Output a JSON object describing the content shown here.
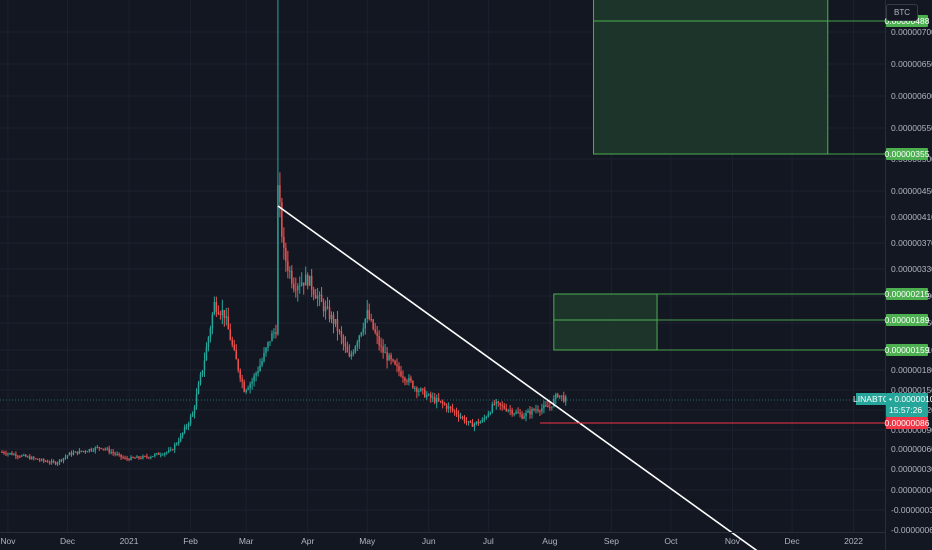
{
  "currency_label": "BTC",
  "colors": {
    "background": "#131722",
    "up": "#26a69a",
    "down": "#ef5350",
    "zone_fill": "#1e3a2b",
    "zone_border": "#4caf50",
    "trendline": "#ffffff",
    "stop_line": "#f23645"
  },
  "chart_data": {
    "type": "candlestick",
    "symbol": "LINABTC",
    "last_price": "0.00000109",
    "countdown": "15:57:26",
    "price_axis": {
      "ticks": [
        "0.00000700",
        "0.00000650",
        "0.00000600",
        "0.00000550",
        "0.00000500",
        "0.00000450",
        "0.00000410",
        "0.00000370",
        "0.00000330",
        "0.00000290",
        "0.00000250",
        "0.00000210",
        "0.00000180",
        "0.00000150",
        "0.00000120",
        "0.00000090",
        "0.00000060",
        "0.00000030",
        "0.00000000",
        "-0.00000030",
        "-0.00000060"
      ]
    },
    "time_axis": {
      "ticks": [
        "Nov",
        "Dec",
        "2021",
        "Feb",
        "Mar",
        "Apr",
        "May",
        "Jun",
        "Jul",
        "Aug",
        "Sep",
        "Oct",
        "Nov",
        "Dec",
        "2022"
      ]
    },
    "price_tags": [
      {
        "value": "0.00000679",
        "kind": "target"
      },
      {
        "value": "0.00000488",
        "kind": "target"
      },
      {
        "value": "0.00000355",
        "kind": "target"
      },
      {
        "value": "0.00000215",
        "kind": "target"
      },
      {
        "value": "0.00000189",
        "kind": "target"
      },
      {
        "value": "0.00000159",
        "kind": "target"
      },
      {
        "value": "0.00000086",
        "kind": "stop"
      }
    ],
    "zones": [
      {
        "name": "upper-target-zone",
        "from_date": "2021-08-23",
        "to_date": "2021-12-19",
        "low": 3.55e-06,
        "mid": 4.88e-06,
        "high": 6.79e-06
      },
      {
        "name": "lower-target-zone",
        "from_date": "2021-08-03",
        "to_date": "2021-09-24",
        "low": 1.59e-06,
        "mid": 1.89e-06,
        "high": 2.15e-06
      }
    ],
    "stop_level": {
      "from_date": "2021-07-27",
      "value": 8.6e-07
    },
    "trendline": {
      "start": {
        "date": "2021-03-17",
        "price": 3.03e-06
      },
      "end": {
        "date": "2021-11-29",
        "price": -6.4e-07
      }
    },
    "series_points": [
      [
        "2020-10-29",
        5.7e-07
      ],
      [
        "2020-11-08",
        5.3e-07
      ],
      [
        "2020-11-19",
        4.8e-07
      ],
      [
        "2020-11-25",
        4.6e-07
      ],
      [
        "2020-12-02",
        5.5e-07
      ],
      [
        "2020-12-18",
        6.2e-07
      ],
      [
        "2020-12-30",
        5e-07
      ],
      [
        "2021-01-10",
        5.2e-07
      ],
      [
        "2021-01-22",
        5.8e-07
      ],
      [
        "2021-01-27",
        7.2e-07
      ],
      [
        "2021-02-02",
        9.5e-07
      ],
      [
        "2021-02-08",
        1.5e-06
      ],
      [
        "2021-02-13",
        2.05e-06
      ],
      [
        "2021-02-18",
        1.95e-06
      ],
      [
        "2021-02-23",
        1.55e-06
      ],
      [
        "2021-02-28",
        1.2e-06
      ],
      [
        "2021-03-04",
        1.28e-06
      ],
      [
        "2021-03-09",
        1.48e-06
      ],
      [
        "2021-03-13",
        1.7e-06
      ],
      [
        "2021-03-16",
        1.8e-06
      ],
      [
        "2021-03-17",
        3.2e-06
      ],
      [
        "2021-03-20",
        2.55e-06
      ],
      [
        "2021-03-25",
        2.25e-06
      ],
      [
        "2021-04-01",
        2.3e-06
      ],
      [
        "2021-04-08",
        2.05e-06
      ],
      [
        "2021-04-15",
        1.85e-06
      ],
      [
        "2021-04-22",
        1.5e-06
      ],
      [
        "2021-05-01",
        1.95e-06
      ],
      [
        "2021-05-08",
        1.6e-06
      ],
      [
        "2021-05-15",
        1.42e-06
      ],
      [
        "2021-05-25",
        1.22e-06
      ],
      [
        "2021-06-01",
        1.12e-06
      ],
      [
        "2021-06-08",
        1.05e-06
      ],
      [
        "2021-06-15",
        9.6e-07
      ],
      [
        "2021-06-22",
        8.4e-07
      ],
      [
        "2021-06-28",
        8.8e-07
      ],
      [
        "2021-07-04",
        1.05e-06
      ],
      [
        "2021-07-11",
        1e-06
      ],
      [
        "2021-07-18",
        9.3e-07
      ],
      [
        "2021-07-25",
        1e-06
      ],
      [
        "2021-08-01",
        1.02e-06
      ],
      [
        "2021-08-05",
        1.15e-06
      ],
      [
        "2021-08-09",
        1.09e-06
      ]
    ]
  }
}
